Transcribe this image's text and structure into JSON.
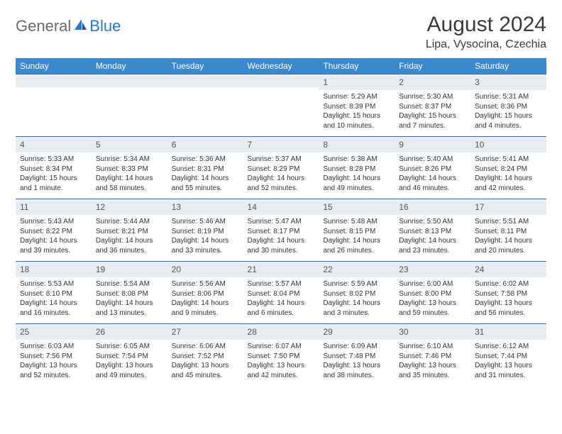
{
  "logo": {
    "text1": "General",
    "text2": "Blue"
  },
  "title": "August 2024",
  "location": "Lipa, Vysocina, Czechia",
  "colors": {
    "header_bg": "#3a89cf",
    "header_text": "#ffffff",
    "daynum_bg": "#e9edf1",
    "border": "#3a6ea5",
    "logo_gray": "#6a6a6a",
    "logo_blue": "#2b78c2"
  },
  "daysOfWeek": [
    "Sunday",
    "Monday",
    "Tuesday",
    "Wednesday",
    "Thursday",
    "Friday",
    "Saturday"
  ],
  "weeks": [
    [
      {
        "n": "",
        "sunrise": "",
        "sunset": "",
        "daylight": ""
      },
      {
        "n": "",
        "sunrise": "",
        "sunset": "",
        "daylight": ""
      },
      {
        "n": "",
        "sunrise": "",
        "sunset": "",
        "daylight": ""
      },
      {
        "n": "",
        "sunrise": "",
        "sunset": "",
        "daylight": ""
      },
      {
        "n": "1",
        "sunrise": "Sunrise: 5:29 AM",
        "sunset": "Sunset: 8:39 PM",
        "daylight": "Daylight: 15 hours and 10 minutes."
      },
      {
        "n": "2",
        "sunrise": "Sunrise: 5:30 AM",
        "sunset": "Sunset: 8:37 PM",
        "daylight": "Daylight: 15 hours and 7 minutes."
      },
      {
        "n": "3",
        "sunrise": "Sunrise: 5:31 AM",
        "sunset": "Sunset: 8:36 PM",
        "daylight": "Daylight: 15 hours and 4 minutes."
      }
    ],
    [
      {
        "n": "4",
        "sunrise": "Sunrise: 5:33 AM",
        "sunset": "Sunset: 8:34 PM",
        "daylight": "Daylight: 15 hours and 1 minute."
      },
      {
        "n": "5",
        "sunrise": "Sunrise: 5:34 AM",
        "sunset": "Sunset: 8:33 PM",
        "daylight": "Daylight: 14 hours and 58 minutes."
      },
      {
        "n": "6",
        "sunrise": "Sunrise: 5:36 AM",
        "sunset": "Sunset: 8:31 PM",
        "daylight": "Daylight: 14 hours and 55 minutes."
      },
      {
        "n": "7",
        "sunrise": "Sunrise: 5:37 AM",
        "sunset": "Sunset: 8:29 PM",
        "daylight": "Daylight: 14 hours and 52 minutes."
      },
      {
        "n": "8",
        "sunrise": "Sunrise: 5:38 AM",
        "sunset": "Sunset: 8:28 PM",
        "daylight": "Daylight: 14 hours and 49 minutes."
      },
      {
        "n": "9",
        "sunrise": "Sunrise: 5:40 AM",
        "sunset": "Sunset: 8:26 PM",
        "daylight": "Daylight: 14 hours and 46 minutes."
      },
      {
        "n": "10",
        "sunrise": "Sunrise: 5:41 AM",
        "sunset": "Sunset: 8:24 PM",
        "daylight": "Daylight: 14 hours and 42 minutes."
      }
    ],
    [
      {
        "n": "11",
        "sunrise": "Sunrise: 5:43 AM",
        "sunset": "Sunset: 8:22 PM",
        "daylight": "Daylight: 14 hours and 39 minutes."
      },
      {
        "n": "12",
        "sunrise": "Sunrise: 5:44 AM",
        "sunset": "Sunset: 8:21 PM",
        "daylight": "Daylight: 14 hours and 36 minutes."
      },
      {
        "n": "13",
        "sunrise": "Sunrise: 5:46 AM",
        "sunset": "Sunset: 8:19 PM",
        "daylight": "Daylight: 14 hours and 33 minutes."
      },
      {
        "n": "14",
        "sunrise": "Sunrise: 5:47 AM",
        "sunset": "Sunset: 8:17 PM",
        "daylight": "Daylight: 14 hours and 30 minutes."
      },
      {
        "n": "15",
        "sunrise": "Sunrise: 5:48 AM",
        "sunset": "Sunset: 8:15 PM",
        "daylight": "Daylight: 14 hours and 26 minutes."
      },
      {
        "n": "16",
        "sunrise": "Sunrise: 5:50 AM",
        "sunset": "Sunset: 8:13 PM",
        "daylight": "Daylight: 14 hours and 23 minutes."
      },
      {
        "n": "17",
        "sunrise": "Sunrise: 5:51 AM",
        "sunset": "Sunset: 8:11 PM",
        "daylight": "Daylight: 14 hours and 20 minutes."
      }
    ],
    [
      {
        "n": "18",
        "sunrise": "Sunrise: 5:53 AM",
        "sunset": "Sunset: 8:10 PM",
        "daylight": "Daylight: 14 hours and 16 minutes."
      },
      {
        "n": "19",
        "sunrise": "Sunrise: 5:54 AM",
        "sunset": "Sunset: 8:08 PM",
        "daylight": "Daylight: 14 hours and 13 minutes."
      },
      {
        "n": "20",
        "sunrise": "Sunrise: 5:56 AM",
        "sunset": "Sunset: 8:06 PM",
        "daylight": "Daylight: 14 hours and 9 minutes."
      },
      {
        "n": "21",
        "sunrise": "Sunrise: 5:57 AM",
        "sunset": "Sunset: 8:04 PM",
        "daylight": "Daylight: 14 hours and 6 minutes."
      },
      {
        "n": "22",
        "sunrise": "Sunrise: 5:59 AM",
        "sunset": "Sunset: 8:02 PM",
        "daylight": "Daylight: 14 hours and 3 minutes."
      },
      {
        "n": "23",
        "sunrise": "Sunrise: 6:00 AM",
        "sunset": "Sunset: 8:00 PM",
        "daylight": "Daylight: 13 hours and 59 minutes."
      },
      {
        "n": "24",
        "sunrise": "Sunrise: 6:02 AM",
        "sunset": "Sunset: 7:58 PM",
        "daylight": "Daylight: 13 hours and 56 minutes."
      }
    ],
    [
      {
        "n": "25",
        "sunrise": "Sunrise: 6:03 AM",
        "sunset": "Sunset: 7:56 PM",
        "daylight": "Daylight: 13 hours and 52 minutes."
      },
      {
        "n": "26",
        "sunrise": "Sunrise: 6:05 AM",
        "sunset": "Sunset: 7:54 PM",
        "daylight": "Daylight: 13 hours and 49 minutes."
      },
      {
        "n": "27",
        "sunrise": "Sunrise: 6:06 AM",
        "sunset": "Sunset: 7:52 PM",
        "daylight": "Daylight: 13 hours and 45 minutes."
      },
      {
        "n": "28",
        "sunrise": "Sunrise: 6:07 AM",
        "sunset": "Sunset: 7:50 PM",
        "daylight": "Daylight: 13 hours and 42 minutes."
      },
      {
        "n": "29",
        "sunrise": "Sunrise: 6:09 AM",
        "sunset": "Sunset: 7:48 PM",
        "daylight": "Daylight: 13 hours and 38 minutes."
      },
      {
        "n": "30",
        "sunrise": "Sunrise: 6:10 AM",
        "sunset": "Sunset: 7:46 PM",
        "daylight": "Daylight: 13 hours and 35 minutes."
      },
      {
        "n": "31",
        "sunrise": "Sunrise: 6:12 AM",
        "sunset": "Sunset: 7:44 PM",
        "daylight": "Daylight: 13 hours and 31 minutes."
      }
    ]
  ]
}
